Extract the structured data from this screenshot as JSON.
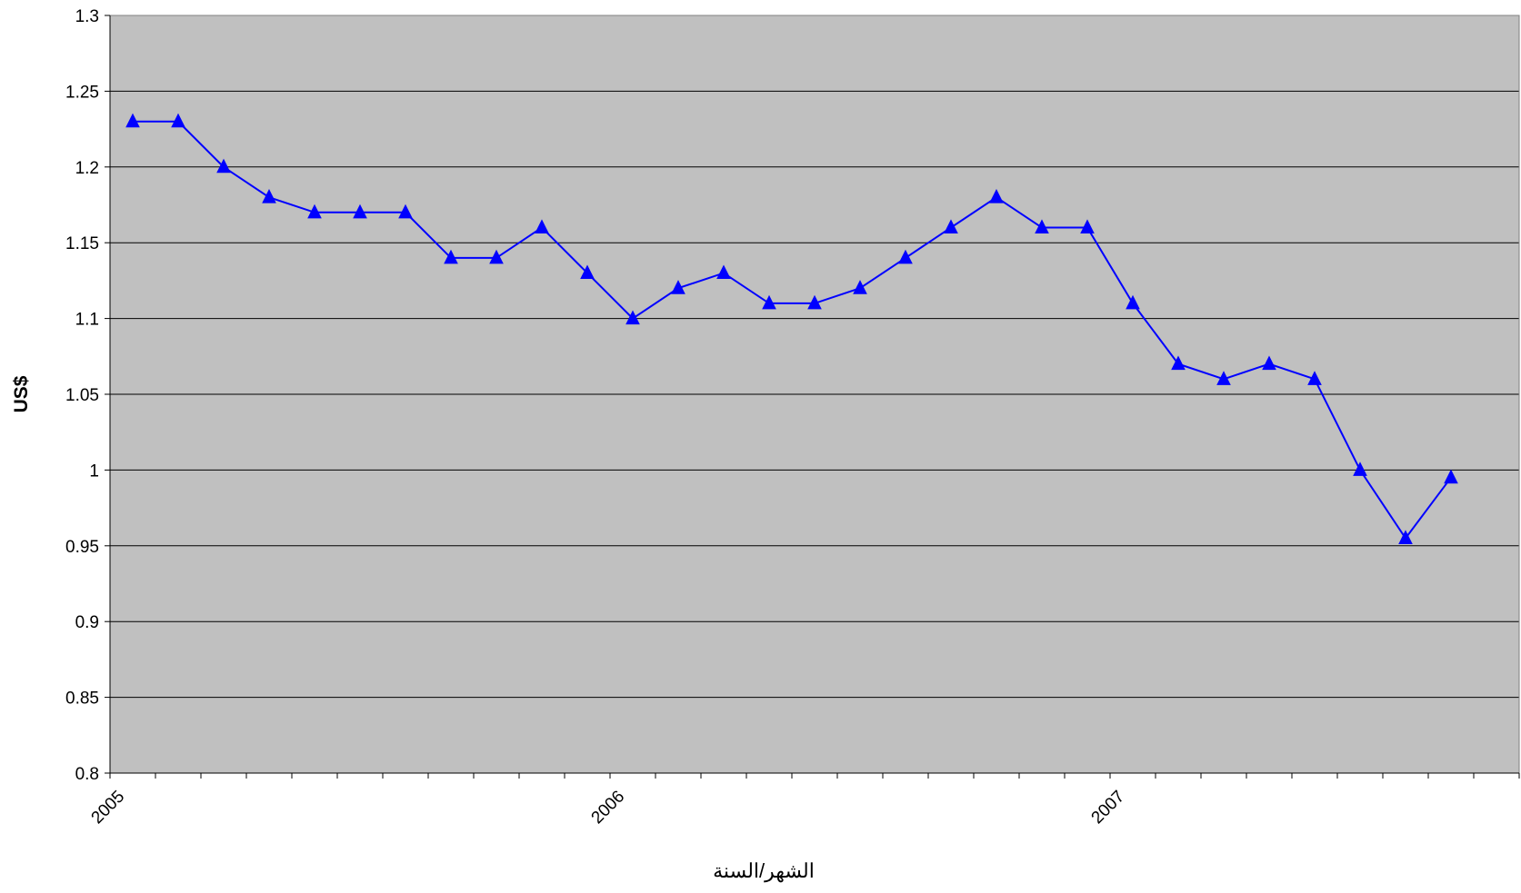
{
  "chart_data": {
    "type": "line",
    "title": "",
    "xlabel": "الشهر/السنة",
    "ylabel": "US$",
    "ylim": [
      0.8,
      1.3
    ],
    "yticks": [
      "0.8",
      "0.85",
      "0.9",
      "0.95",
      "1",
      "1.05",
      "1.1",
      "1.15",
      "1.2",
      "1.25",
      "1.3"
    ],
    "x_tick_labels": [
      "2005",
      "2006",
      "2007"
    ],
    "plot_background": "#c0c0c0",
    "line_color": "#0000ff",
    "marker": "triangle",
    "grid": true,
    "series": [
      {
        "values": [
          1.23,
          1.23,
          1.2,
          1.18,
          1.17,
          1.17,
          1.17,
          1.14,
          1.14,
          1.16,
          1.13,
          1.1,
          1.12,
          1.13,
          1.11,
          1.11,
          1.12,
          1.14,
          1.16,
          1.18,
          1.16,
          1.16,
          1.11,
          1.07,
          1.06,
          1.07,
          1.06,
          1.0,
          0.955,
          0.995
        ]
      }
    ]
  }
}
